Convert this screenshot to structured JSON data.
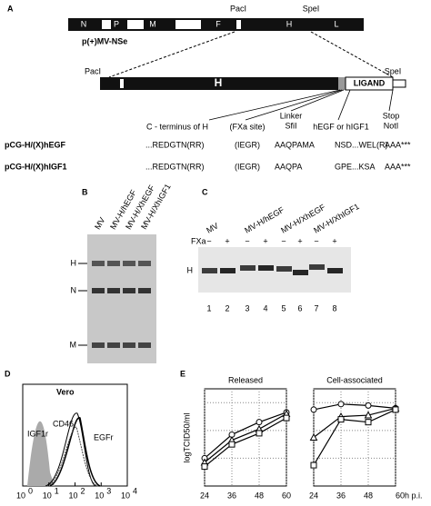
{
  "panel_a": {
    "label": "A",
    "genome": {
      "name": "p(+)MV-NSe",
      "genes": [
        "N",
        "P",
        "M",
        "F",
        "H",
        "L"
      ],
      "site_left": "PacI",
      "site_right": "SpeI"
    },
    "construct": {
      "site_left": "PacI",
      "site_right": "SpeI",
      "h": "H",
      "ligand": "LIGAND"
    },
    "annotations": {
      "c_terminus": "C - terminus of H",
      "fxa": "(FXa site)",
      "linker": "Linker",
      "sfi": "SfiI",
      "ligand": "hEGF or hIGF1",
      "stop": "Stop",
      "not": "NotI"
    },
    "rows": [
      [
        "pCG-H/(X)hEGF",
        "...REDGTN(RR)",
        "(IEGR)",
        "AAQPAMA",
        "NSD...WEL(R)",
        "AAA***"
      ],
      [
        "pCG-H/(X)hIGF1",
        "...REDGTN(RR)",
        "(IEGR)",
        "AAQPA",
        "GPE...KSA",
        "AAA***"
      ]
    ]
  },
  "panel_b": {
    "label": "B",
    "lanes": [
      "MV",
      "MV-H/hEGF",
      "MV-H/XhEGF",
      "MV-H/XhIGF1"
    ],
    "markers": [
      "H",
      "N",
      "M"
    ]
  },
  "panel_c": {
    "label": "C",
    "lanes": [
      "MV",
      "MV-H/hEGF",
      "MV-H/XhEGF",
      "MV-H/XhIGF1"
    ],
    "treatment": "FXa",
    "signs": [
      "−",
      "+",
      "−",
      "+",
      "−",
      "+",
      "−",
      "+"
    ],
    "numbers": [
      "1",
      "2",
      "3",
      "4",
      "5",
      "6",
      "7",
      "8"
    ],
    "marker": "H"
  },
  "panel_d": {
    "label": "D",
    "title": "Vero",
    "curves": [
      "CD46",
      "IGF1r",
      "EGFr"
    ],
    "xticks": [
      {
        "base": "10",
        "exp": "0"
      },
      {
        "base": "10",
        "exp": "1"
      },
      {
        "base": "10",
        "exp": "2"
      },
      {
        "base": "10",
        "exp": "3"
      },
      {
        "base": "10",
        "exp": "4"
      }
    ]
  },
  "panel_e": {
    "label": "E",
    "y_label": "logTCID50/ml",
    "ylim": [
      1,
      8
    ],
    "ygrid": [
      3,
      5,
      7
    ],
    "charts": [
      {
        "type": "line",
        "title": "Released",
        "x": [
          24,
          36,
          48,
          60
        ],
        "xlim": [
          24,
          60
        ],
        "xticks": [
          24,
          36,
          48,
          60
        ],
        "series": [
          {
            "marker": "circle",
            "values": [
              3.0,
              4.7,
              5.6,
              6.3
            ]
          },
          {
            "marker": "triangle",
            "values": [
              2.7,
              4.3,
              5.1,
              6.2
            ]
          },
          {
            "marker": "square",
            "values": [
              2.4,
              4.0,
              4.8,
              5.9
            ]
          }
        ]
      },
      {
        "type": "line",
        "title": "Cell-associated",
        "x": [
          24,
          36,
          48,
          60
        ],
        "xlim": [
          24,
          60
        ],
        "xticks": [
          24,
          36,
          48,
          {
            "value": 60,
            "label": "60h p.i."
          }
        ],
        "series": [
          {
            "marker": "circle",
            "values": [
              6.5,
              6.9,
              6.8,
              6.6
            ]
          },
          {
            "marker": "triangle",
            "values": [
              4.5,
              6.0,
              6.1,
              6.6
            ]
          },
          {
            "marker": "square",
            "values": [
              2.5,
              5.8,
              5.6,
              6.5
            ]
          }
        ]
      }
    ]
  }
}
